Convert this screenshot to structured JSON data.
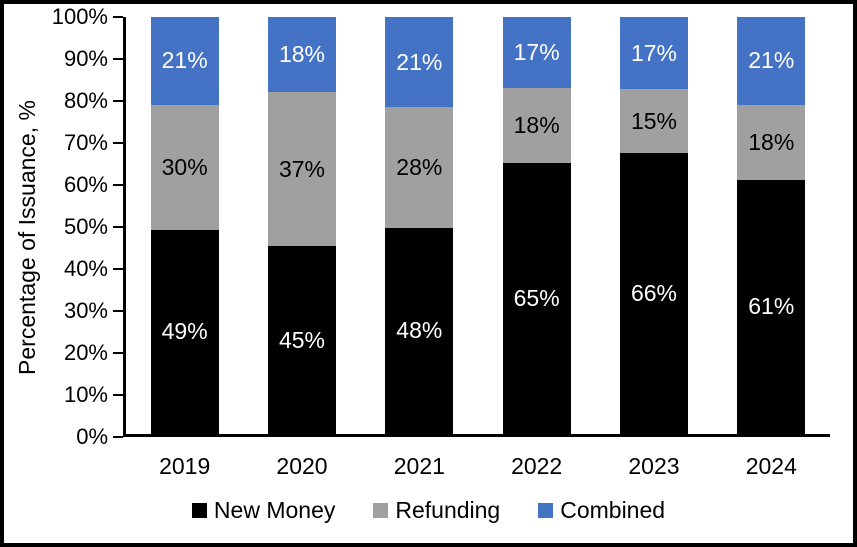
{
  "chart_data": {
    "type": "bar",
    "stacked": true,
    "title": "",
    "categories": [
      "2019",
      "2020",
      "2021",
      "2022",
      "2023",
      "2024"
    ],
    "series": [
      {
        "name": "New Money",
        "color": "#000000",
        "label_color": "#FFFFFF",
        "values": [
          49,
          45,
          48,
          65,
          66,
          61
        ]
      },
      {
        "name": "Refunding",
        "color": "#A0A0A0",
        "label_color": "#000000",
        "values": [
          30,
          37,
          28,
          18,
          15,
          18
        ]
      },
      {
        "name": "Combined",
        "color": "#4472C4",
        "label_color": "#FFFFFF",
        "values": [
          21,
          18,
          21,
          17,
          17,
          21
        ]
      }
    ],
    "value_suffix": "%",
    "xlabel": "",
    "ylabel": "Percentage of Issuance, %",
    "ylim": [
      0,
      100
    ],
    "y_ticks": [
      0,
      10,
      20,
      30,
      40,
      50,
      60,
      70,
      80,
      90,
      100
    ],
    "y_tick_suffix": "%",
    "grid": false,
    "legend_position": "bottom",
    "colors": {
      "background": "#FFFFFF",
      "border": "#000000",
      "axis": "#000000",
      "accent_blue": "#4472C4",
      "accent_gray": "#A0A0A0",
      "accent_black": "#000000"
    }
  }
}
